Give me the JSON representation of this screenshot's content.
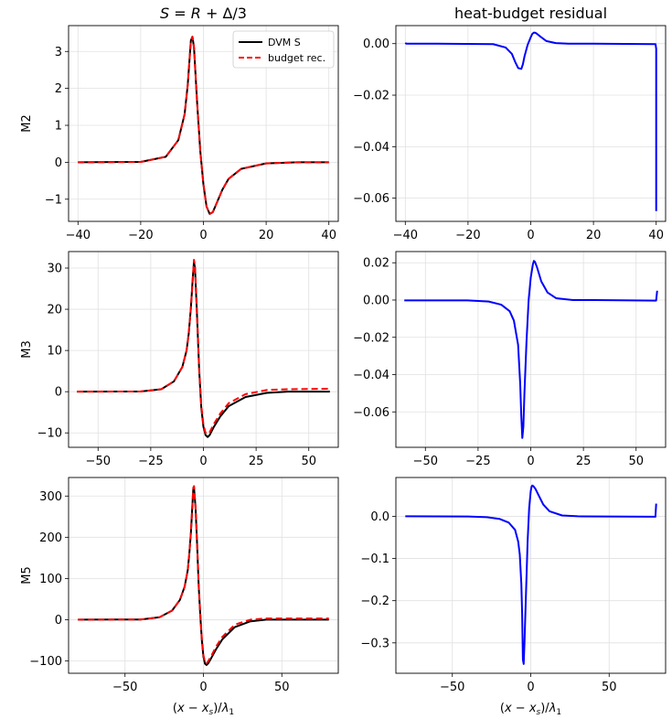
{
  "chart_data": [
    {
      "type": "line",
      "title": "S = R + Δ/3",
      "title_math": {
        "pre": "S = R + Δ/3"
      },
      "xlabel": "",
      "ylabel": "M2",
      "xlim": [
        -43,
        43
      ],
      "ylim": [
        -1.6,
        3.7
      ],
      "xticks": [
        -40,
        -20,
        0,
        20,
        40
      ],
      "xticklabels": [
        "−40",
        "−20",
        "0",
        "20",
        "40"
      ],
      "yticks": [
        -1,
        0,
        1,
        2,
        3
      ],
      "yticklabels": [
        "−1",
        "0",
        "1",
        "2",
        "3"
      ],
      "grid": true,
      "legend": {
        "placement": "top-right",
        "entries": [
          "DVM S",
          "budget rec."
        ]
      },
      "series": [
        {
          "name": "DVM S",
          "color": "#000000",
          "style": "solid",
          "x": [
            -40,
            -20,
            -12,
            -8,
            -6,
            -5,
            -4,
            -3.5,
            -3,
            -2,
            -1,
            0,
            1,
            2,
            3,
            4,
            6,
            8,
            12,
            20,
            30,
            40
          ],
          "y": [
            0,
            0.01,
            0.15,
            0.6,
            1.3,
            2.1,
            3.3,
            3.4,
            3.1,
            1.6,
            0.3,
            -0.6,
            -1.2,
            -1.4,
            -1.35,
            -1.15,
            -0.75,
            -0.45,
            -0.18,
            -0.03,
            0,
            0
          ]
        },
        {
          "name": "budget rec.",
          "color": "#ff0000",
          "style": "dashed",
          "x": [
            -40,
            -20,
            -12,
            -8,
            -6,
            -5,
            -4,
            -3.5,
            -3,
            -2,
            -1,
            0,
            1,
            2,
            3,
            4,
            6,
            8,
            12,
            20,
            30,
            40
          ],
          "y": [
            0,
            0.01,
            0.15,
            0.6,
            1.3,
            2.1,
            3.3,
            3.4,
            3.1,
            1.6,
            0.3,
            -0.6,
            -1.2,
            -1.4,
            -1.35,
            -1.15,
            -0.75,
            -0.45,
            -0.18,
            -0.03,
            0,
            0
          ]
        }
      ]
    },
    {
      "type": "line",
      "title": "heat-budget residual",
      "xlabel": "",
      "ylabel": "",
      "xlim": [
        -43,
        43
      ],
      "ylim": [
        -0.069,
        0.007
      ],
      "xticks": [
        -40,
        -20,
        0,
        20,
        40
      ],
      "xticklabels": [
        "−40",
        "−20",
        "0",
        "20",
        "40"
      ],
      "yticks": [
        0,
        -0.02,
        -0.04,
        -0.06
      ],
      "yticklabels": [
        "0.00",
        "−0.02",
        "−0.04",
        "−0.06"
      ],
      "grid": true,
      "series": [
        {
          "color": "#0000ff",
          "style": "solid",
          "x": [
            -40,
            -39.7,
            -30,
            -12,
            -8,
            -6,
            -5,
            -4,
            -3,
            -2.5,
            -2,
            -1,
            0,
            0.5,
            1,
            1.5,
            2,
            3,
            5,
            8,
            12,
            20,
            39.8,
            40,
            40
          ],
          "y": [
            0.0003,
            0,
            0,
            -0.0002,
            -0.0015,
            -0.004,
            -0.007,
            -0.0095,
            -0.0098,
            -0.008,
            -0.005,
            -0.0005,
            0.0025,
            0.0038,
            0.0043,
            0.0042,
            0.0038,
            0.0028,
            0.001,
            0.0002,
            0,
            0,
            -0.0002,
            -0.002,
            -0.065
          ]
        }
      ]
    },
    {
      "type": "line",
      "title": "",
      "xlabel": "",
      "ylabel": "M3",
      "xlim": [
        -64,
        64
      ],
      "ylim": [
        -13.5,
        34
      ],
      "xticks": [
        -50,
        -25,
        0,
        25,
        50
      ],
      "xticklabels": [
        "−50",
        "−25",
        "0",
        "25",
        "50"
      ],
      "yticks": [
        -10,
        0,
        10,
        20,
        30
      ],
      "yticklabels": [
        "−10",
        "0",
        "10",
        "20",
        "30"
      ],
      "grid": true,
      "series": [
        {
          "name": "DVM S",
          "color": "#000000",
          "style": "solid",
          "x": [
            -60,
            -30,
            -20,
            -14,
            -10,
            -8,
            -7,
            -6,
            -5,
            -4.5,
            -4,
            -3,
            -2,
            -1,
            0,
            1,
            2,
            3,
            5,
            8,
            12,
            20,
            30,
            40,
            60
          ],
          "y": [
            0,
            0.05,
            0.6,
            2.5,
            6,
            10,
            14,
            20,
            28,
            31.5,
            30,
            18,
            5,
            -4,
            -8.5,
            -10.5,
            -11,
            -10.5,
            -8.5,
            -6,
            -3.5,
            -1.3,
            -0.3,
            0,
            0
          ]
        },
        {
          "name": "budget rec.",
          "color": "#ff0000",
          "style": "dashed",
          "x": [
            -60,
            -30,
            -20,
            -14,
            -10,
            -8,
            -7,
            -6,
            -5,
            -4.5,
            -4,
            -3,
            -2,
            -1,
            0,
            1,
            2,
            3,
            5,
            8,
            12,
            20,
            30,
            40,
            60
          ],
          "y": [
            0,
            0.05,
            0.6,
            2.5,
            6,
            10,
            14,
            20,
            28,
            32,
            30.5,
            18.5,
            5.5,
            -3.5,
            -8,
            -10,
            -10.3,
            -9.8,
            -7.8,
            -5.3,
            -2.8,
            -0.6,
            0.4,
            0.6,
            0.7
          ]
        }
      ]
    },
    {
      "type": "line",
      "title": "",
      "xlabel": "",
      "ylabel": "",
      "xlim": [
        -64,
        64
      ],
      "ylim": [
        -0.079,
        0.026
      ],
      "xticks": [
        -50,
        -25,
        0,
        25,
        50
      ],
      "xticklabels": [
        "−50",
        "−25",
        "0",
        "25",
        "50"
      ],
      "yticks": [
        0.02,
        0,
        -0.02,
        -0.04,
        -0.06
      ],
      "yticklabels": [
        "0.02",
        "0.00",
        "−0.02",
        "−0.04",
        "−0.06"
      ],
      "grid": true,
      "series": [
        {
          "color": "#0000ff",
          "style": "solid",
          "x": [
            -60,
            -30,
            -20,
            -14,
            -10,
            -8,
            -6,
            -5,
            -4.5,
            -4,
            -3.5,
            -3,
            -2,
            -1,
            0,
            1,
            1.5,
            2,
            3,
            5,
            8,
            12,
            20,
            30,
            59.5,
            60,
            60
          ],
          "y": [
            -0.0002,
            -0.0002,
            -0.0008,
            -0.0025,
            -0.006,
            -0.011,
            -0.024,
            -0.045,
            -0.062,
            -0.074,
            -0.068,
            -0.05,
            -0.022,
            0.0,
            0.012,
            0.019,
            0.021,
            0.0205,
            0.0175,
            0.01,
            0.004,
            0.001,
            0,
            0,
            -0.0003,
            0.005,
            0.005
          ]
        }
      ]
    },
    {
      "type": "line",
      "title": "",
      "xlabel": "(x − x_s)/λ_1",
      "ylabel": "M5",
      "xlim": [
        -86,
        86
      ],
      "ylim": [
        -130,
        345
      ],
      "xticks": [
        -50,
        0,
        50
      ],
      "xticklabels": [
        "−50",
        "0",
        "50"
      ],
      "yticks": [
        -100,
        0,
        100,
        200,
        300
      ],
      "yticklabels": [
        "−100",
        "0",
        "100",
        "200",
        "300"
      ],
      "grid": true,
      "series": [
        {
          "name": "DVM S",
          "color": "#000000",
          "style": "solid",
          "x": [
            -80,
            -40,
            -28,
            -20,
            -15,
            -12,
            -10,
            -9,
            -8,
            -7,
            -6.5,
            -6,
            -5,
            -4,
            -3,
            -2,
            -1,
            0,
            1,
            2,
            3,
            5,
            8,
            12,
            20,
            30,
            40,
            80
          ],
          "y": [
            0,
            0.5,
            6,
            22,
            48,
            80,
            120,
            160,
            210,
            280,
            315,
            320,
            270,
            180,
            80,
            10,
            -50,
            -90,
            -107,
            -110,
            -106,
            -93,
            -72,
            -48,
            -18,
            -4,
            0,
            0
          ]
        },
        {
          "name": "budget rec.",
          "color": "#ff0000",
          "style": "dashed",
          "x": [
            -80,
            -40,
            -28,
            -20,
            -15,
            -12,
            -10,
            -9,
            -8,
            -7,
            -6.5,
            -6,
            -5,
            -4,
            -3,
            -2,
            -1,
            0,
            1,
            2,
            3,
            5,
            8,
            12,
            20,
            30,
            40,
            80
          ],
          "y": [
            0,
            0.5,
            6,
            22,
            48,
            80,
            120,
            160,
            212,
            283,
            320,
            324,
            274,
            184,
            84,
            14,
            -46,
            -86,
            -103,
            -106,
            -101,
            -88,
            -66,
            -42,
            -12,
            0,
            3,
            3
          ]
        }
      ]
    },
    {
      "type": "line",
      "title": "",
      "xlabel": "(x − x_s)/λ_1",
      "ylabel": "",
      "xlim": [
        -86,
        86
      ],
      "ylim": [
        -0.372,
        0.092
      ],
      "xticks": [
        -50,
        0,
        50
      ],
      "xticklabels": [
        "−50",
        "0",
        "50"
      ],
      "yticks": [
        0,
        -0.1,
        -0.2,
        -0.3
      ],
      "yticklabels": [
        "0.0",
        "−0.1",
        "−0.2",
        "−0.3"
      ],
      "grid": true,
      "series": [
        {
          "color": "#0000ff",
          "style": "solid",
          "x": [
            -80,
            -40,
            -28,
            -20,
            -14,
            -10,
            -8,
            -7,
            -6,
            -5.5,
            -5,
            -4.5,
            -4,
            -3,
            -2,
            -1,
            0,
            0.5,
            1,
            1.5,
            2,
            3,
            5,
            8,
            12,
            20,
            30,
            79.5,
            80,
            80
          ],
          "y": [
            0,
            -0.0005,
            -0.002,
            -0.006,
            -0.015,
            -0.032,
            -0.06,
            -0.09,
            -0.16,
            -0.23,
            -0.34,
            -0.35,
            -0.3,
            -0.18,
            -0.06,
            0.02,
            0.06,
            0.07,
            0.073,
            0.072,
            0.07,
            0.065,
            0.05,
            0.028,
            0.012,
            0.002,
            0,
            -0.001,
            0.03,
            0.03
          ]
        }
      ]
    }
  ]
}
